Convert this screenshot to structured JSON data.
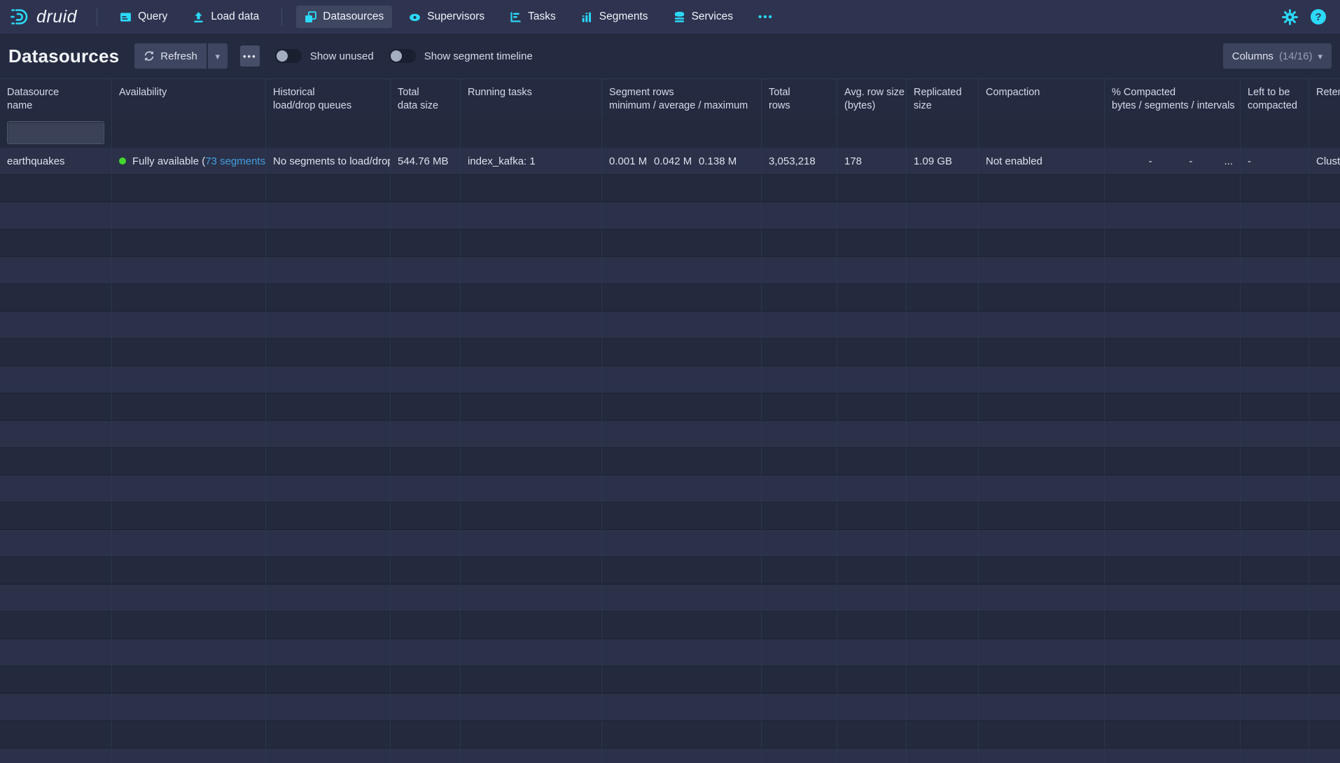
{
  "colors": {
    "accent_cyan": "#2bd9f8",
    "status_green": "#43d62f",
    "link_blue": "#459fe1",
    "navbar_bg": "#2e3450",
    "page_bg": "#242b41"
  },
  "icons": {
    "logo": "druid-swirl-icon",
    "query": "console-icon",
    "load_data": "upload-arrow-icon",
    "datasources": "stacked-windows-icon",
    "supervisors": "eye-icon",
    "tasks": "gantt-icon",
    "segments": "bar-chart-icon",
    "services": "database-icon",
    "more": "more-dots-icon",
    "settings": "gear-icon",
    "help": "help-icon",
    "refresh": "refresh-icon",
    "caret_down": "▾",
    "more_dots": "•••",
    "help_glyph": "?"
  },
  "navbar": {
    "logo_text": "druid",
    "items": [
      {
        "label": "Query",
        "active": false
      },
      {
        "label": "Load data",
        "active": false
      },
      {
        "label": "Datasources",
        "active": true
      },
      {
        "label": "Supervisors",
        "active": false
      },
      {
        "label": "Tasks",
        "active": false
      },
      {
        "label": "Segments",
        "active": false
      },
      {
        "label": "Services",
        "active": false
      }
    ]
  },
  "header": {
    "title": "Datasources",
    "refresh_label": "Refresh",
    "toggles": [
      {
        "label": "Show unused",
        "on": false
      },
      {
        "label": "Show segment timeline",
        "on": false
      }
    ],
    "columns_button": {
      "label": "Columns",
      "count": "(14/16)"
    }
  },
  "table": {
    "headers": [
      {
        "line1": "Datasource",
        "line2": "name"
      },
      {
        "line1": "Availability",
        "line2": ""
      },
      {
        "line1": "Historical",
        "line2": "load/drop queues"
      },
      {
        "line1": "Total",
        "line2": "data size"
      },
      {
        "line1": "Running tasks",
        "line2": ""
      },
      {
        "line1": "Segment rows",
        "line2": "minimum / average / maximum"
      },
      {
        "line1": "Total",
        "line2": "rows"
      },
      {
        "line1": "Avg. row size",
        "line2": "(bytes)"
      },
      {
        "line1": "Replicated",
        "line2": "size"
      },
      {
        "line1": "Compaction",
        "line2": ""
      },
      {
        "line1": "% Compacted",
        "line2": "bytes / segments / intervals"
      },
      {
        "line1": "Left to be",
        "line2": "compacted"
      },
      {
        "line1": "Retention",
        "line2": ""
      }
    ],
    "filter": {
      "value": "",
      "placeholder": ""
    },
    "row": {
      "name": "earthquakes",
      "availability_prefix": "Fully available (",
      "availability_link": "73 segments",
      "availability_suffix": ")",
      "load_drop": "No segments to load/drop",
      "total_data_size": "544.76 MB",
      "running_tasks": "index_kafka: 1",
      "segment_rows": [
        "0.001 M",
        "0.042 M",
        "0.138 M"
      ],
      "total_rows": "3,053,218",
      "avg_row_size": "178",
      "replicated_size": "1.09 GB",
      "compaction": "Not enabled",
      "percent_compacted": [
        "-",
        "-",
        "..."
      ],
      "left_to_be_compacted": "-",
      "retention": "Cluster default"
    }
  }
}
